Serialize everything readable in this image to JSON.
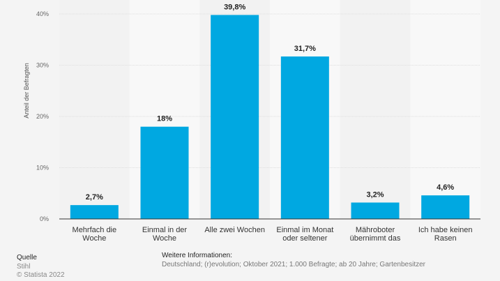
{
  "chart_data": {
    "type": "bar",
    "title": "",
    "xlabel": "",
    "ylabel": "Anteil der Befragten",
    "ylim": [
      0,
      40
    ],
    "yticks": [
      0,
      10,
      20,
      30,
      40
    ],
    "ytick_labels": [
      "0%",
      "10%",
      "20%",
      "30%",
      "40%"
    ],
    "grid": true,
    "categories": [
      [
        "Mehrfach die",
        "Woche"
      ],
      [
        "Einmal in der",
        "Woche"
      ],
      [
        "Alle zwei Wochen"
      ],
      [
        "Einmal im Monat",
        "oder seltener"
      ],
      [
        "Mähroboter",
        "übernimmt das"
      ],
      [
        "Ich habe keinen",
        "Rasen"
      ]
    ],
    "values": [
      2.7,
      18,
      39.8,
      31.7,
      3.2,
      4.6
    ],
    "value_labels": [
      "2,7%",
      "18%",
      "39,8%",
      "31,7%",
      "3,2%",
      "4,6%"
    ],
    "bar_color": "#00a8e1"
  },
  "footer": {
    "source_title": "Quelle",
    "source_name": "Stihl",
    "copyright": "© Statista 2022",
    "info_title": "Weitere Informationen:",
    "info_text": "Deutschland; (r)evolution; Oktober 2021; 1.000 Befragte; ab 20 Jahre; Gartenbesitzer"
  }
}
